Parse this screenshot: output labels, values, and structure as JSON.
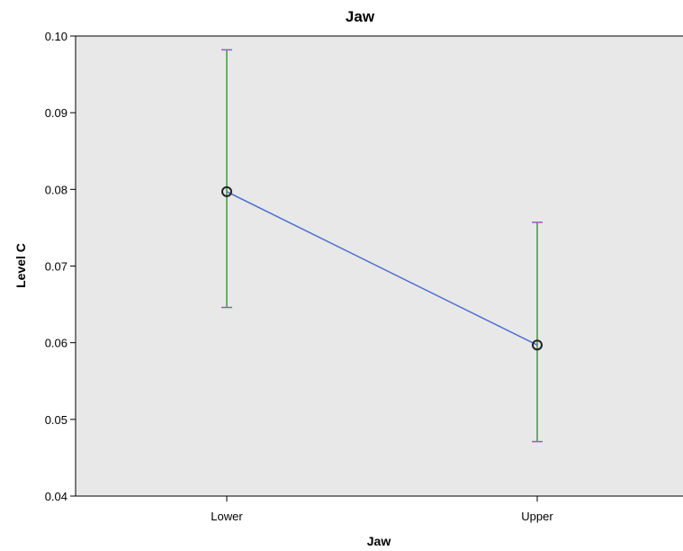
{
  "chart_data": {
    "type": "line",
    "title": "Jaw",
    "xlabel": "Jaw",
    "ylabel": "Level C",
    "categories": [
      "Lower",
      "Upper"
    ],
    "yticks": [
      "0.04",
      "0.05",
      "0.06",
      "0.07",
      "0.08",
      "0.09",
      "0.10"
    ],
    "ylim": [
      0.04,
      0.1
    ],
    "series": [
      {
        "values": [
          0.0797,
          0.0597
        ],
        "error_low": [
          0.0646,
          0.0471
        ],
        "error_high": [
          0.0982,
          0.0757
        ]
      }
    ],
    "grid": false,
    "colors": {
      "plot_background": "#e8e8e8",
      "line": "#4a6fd1",
      "error_bar": "#3c9a3c",
      "error_cap": "#9b59c7",
      "marker": "#222222"
    }
  }
}
